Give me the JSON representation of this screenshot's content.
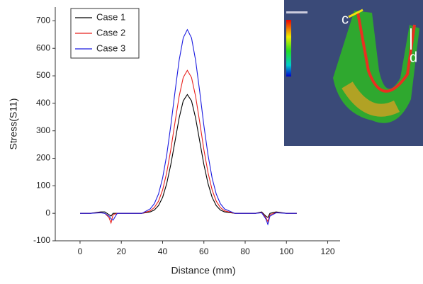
{
  "chart_data": {
    "type": "line",
    "x_label": "Distance (mm)",
    "y_label": "Stress(S11)",
    "x": [
      0,
      5,
      10,
      12,
      14,
      15,
      16,
      18,
      20,
      25,
      30,
      34,
      36,
      38,
      40,
      42,
      44,
      46,
      48,
      50,
      52,
      54,
      56,
      58,
      60,
      62,
      64,
      66,
      68,
      70,
      75,
      80,
      85,
      88,
      90,
      91,
      92,
      95,
      100,
      105
    ],
    "series": [
      {
        "name": "Case 1",
        "color": "#000000",
        "values": [
          0,
          0,
          5,
          5,
          -5,
          -10,
          0,
          0,
          0,
          0,
          0,
          5,
          12,
          28,
          58,
          108,
          178,
          262,
          346,
          409,
          432,
          409,
          346,
          262,
          178,
          108,
          58,
          28,
          12,
          5,
          0,
          0,
          0,
          5,
          -10,
          -15,
          0,
          5,
          0,
          0
        ]
      },
      {
        "name": "Case 2",
        "color": "#e8201c",
        "values": [
          0,
          0,
          3,
          0,
          -15,
          -35,
          -5,
          0,
          0,
          0,
          0,
          9,
          21,
          44,
          85,
          148,
          232,
          331,
          425,
          494,
          520,
          494,
          425,
          331,
          232,
          148,
          85,
          44,
          21,
          9,
          0,
          0,
          0,
          3,
          -15,
          -30,
          -5,
          3,
          0,
          0
        ]
      },
      {
        "name": "Case 3",
        "color": "#1a1ae0",
        "values": [
          0,
          0,
          2,
          0,
          -10,
          -20,
          -25,
          0,
          0,
          0,
          0,
          16,
          35,
          70,
          128,
          212,
          320,
          442,
          556,
          638,
          668,
          638,
          556,
          442,
          320,
          212,
          128,
          70,
          35,
          16,
          0,
          0,
          0,
          2,
          -20,
          -40,
          -10,
          2,
          0,
          0
        ]
      }
    ],
    "xlim": [
      -12,
      126
    ],
    "ylim": [
      -100,
      750
    ],
    "xticks": [
      0,
      20,
      40,
      60,
      80,
      100,
      120
    ],
    "yticks": [
      -100,
      0,
      100,
      200,
      300,
      400,
      500,
      600,
      700
    ],
    "legend": "top-left",
    "annotations": [
      "c",
      "d"
    ]
  }
}
